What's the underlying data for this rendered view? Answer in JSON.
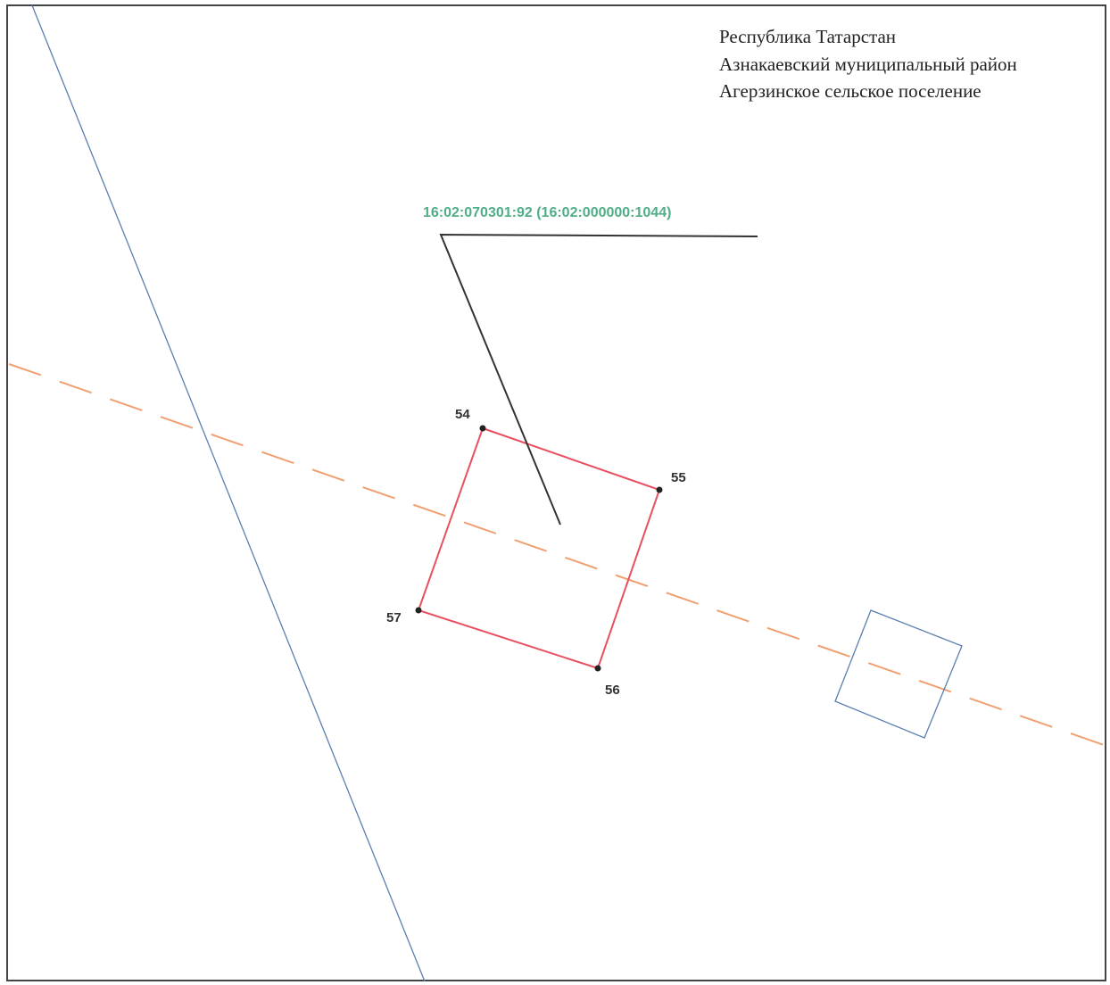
{
  "header": {
    "lines": [
      "Республика Татарстан",
      "Азнакаевский муниципальный район",
      "Агерзинское сельское поселение"
    ]
  },
  "parcel": {
    "label": "16:02:070301:92 (16:02:000000:1044)"
  },
  "points": [
    "54",
    "55",
    "56",
    "57"
  ]
}
